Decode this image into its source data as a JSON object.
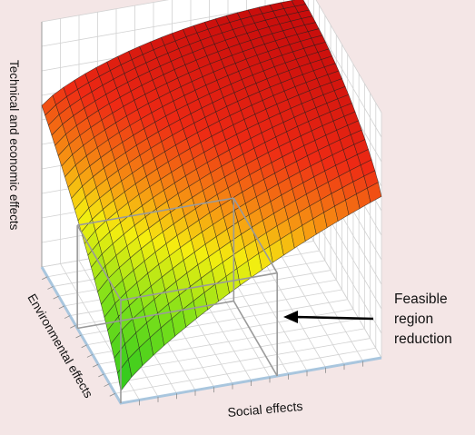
{
  "chart_data": {
    "type": "surface",
    "xlabel": "Social effects",
    "ylabel": "Environmental effects",
    "zlabel": "Technical and economic effects",
    "grid": true,
    "mesh_resolution": [
      24,
      24
    ],
    "colormap": [
      "#22c41f",
      "#7ee11a",
      "#f5ee10",
      "#f79a12",
      "#ee2a14",
      "#c80d0c"
    ],
    "surface_description": "z rises from low (green) at the front corner toward high (red) at the back",
    "annotation": {
      "text_lines": [
        "Feasible",
        "region",
        "reduction"
      ],
      "arrow_color": "#000000"
    },
    "feasible_region_box_color": "#9a9a9a"
  }
}
